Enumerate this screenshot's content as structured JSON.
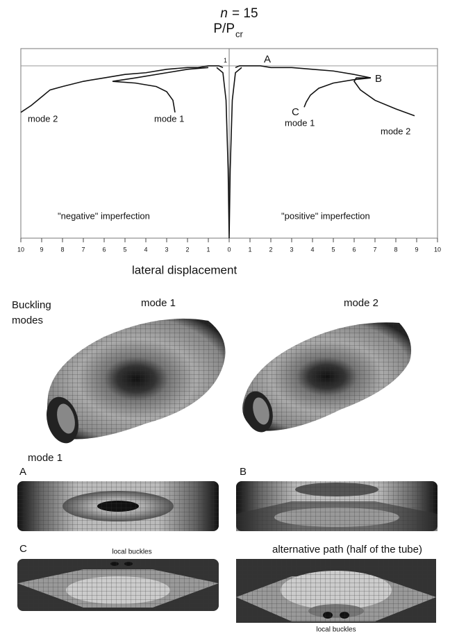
{
  "chart_data": {
    "type": "line",
    "title_var": "n",
    "title_rest": "= 15",
    "ylabel": "P/P",
    "ylabel_sub": "cr",
    "xlabel": "lateral displacement",
    "xlim": [
      -10,
      10
    ],
    "ylim": [
      0,
      1.1
    ],
    "xticks": [
      {
        "value": -10,
        "label": "10"
      },
      {
        "value": -9,
        "label": "9"
      },
      {
        "value": -8,
        "label": "8"
      },
      {
        "value": -7,
        "label": "7"
      },
      {
        "value": -6,
        "label": "6"
      },
      {
        "value": -5,
        "label": "5"
      },
      {
        "value": -4,
        "label": "4"
      },
      {
        "value": -3,
        "label": "3"
      },
      {
        "value": -2,
        "label": "2"
      },
      {
        "value": -1,
        "label": "1"
      },
      0,
      1,
      2,
      3,
      4,
      5,
      6,
      7,
      8,
      9,
      10
    ],
    "yticks": [
      1
    ],
    "grid": true,
    "color": "#111111",
    "series": [
      {
        "x": [
          -10,
          -9.5,
          -9,
          -8.6,
          -8,
          -7,
          -6,
          -5,
          -4,
          -3,
          -2,
          -1.5,
          -1,
          -0.5,
          -0.3
        ],
        "y": [
          0.73,
          0.77,
          0.82,
          0.86,
          0.88,
          0.91,
          0.93,
          0.95,
          0.96,
          0.98,
          0.99,
          0.99,
          1.0,
          1.0,
          0.99
        ]
      },
      {
        "x": [
          -2.6,
          -2.7,
          -3,
          -3.5,
          -4.5,
          -5.6,
          -4.5,
          -3,
          -2,
          -1
        ],
        "y": [
          0.73,
          0.8,
          0.85,
          0.88,
          0.9,
          0.91,
          0.93,
          0.96,
          0.98,
          0.99
        ]
      },
      {
        "x": [
          -0.6,
          -0.3,
          -0.15,
          -0.05,
          0,
          0.05,
          0.15,
          0.3,
          0.6
        ],
        "y": [
          0.99,
          0.96,
          0.8,
          0.4,
          0,
          0.4,
          0.8,
          0.96,
          0.99
        ]
      },
      {
        "x": [
          0.3,
          0.5,
          1,
          1.5,
          2,
          2.5,
          3,
          4,
          5,
          6,
          6.8
        ],
        "y": [
          0.99,
          1.0,
          1.0,
          1.0,
          0.99,
          0.99,
          0.99,
          0.98,
          0.97,
          0.95,
          0.93
        ]
      },
      {
        "x": [
          6.8,
          6,
          5,
          4.3,
          3.9,
          3.7,
          3.6
        ],
        "y": [
          0.93,
          0.92,
          0.9,
          0.87,
          0.83,
          0.79,
          0.76
        ]
      },
      {
        "x": [
          6.8,
          6.1,
          6,
          6.3,
          7,
          8,
          8.9
        ],
        "y": [
          0.93,
          0.93,
          0.91,
          0.86,
          0.8,
          0.75,
          0.71
        ]
      }
    ],
    "annotations": [
      "A",
      "B",
      "C",
      "mode 2",
      "mode 1",
      "mode 1",
      "mode 2",
      "\"negative\" imperfection",
      "\"positive\" imperfection"
    ]
  },
  "figures": {
    "label_line1": "Buckling",
    "label_line2": "modes",
    "mode1": "mode 1",
    "mode2": "mode 2",
    "panel_title": "mode 1",
    "A": "A",
    "B": "B",
    "C": "C",
    "alt": "alternative path (half of the tube)",
    "local1": "local buckles",
    "local2": "local buckles"
  }
}
